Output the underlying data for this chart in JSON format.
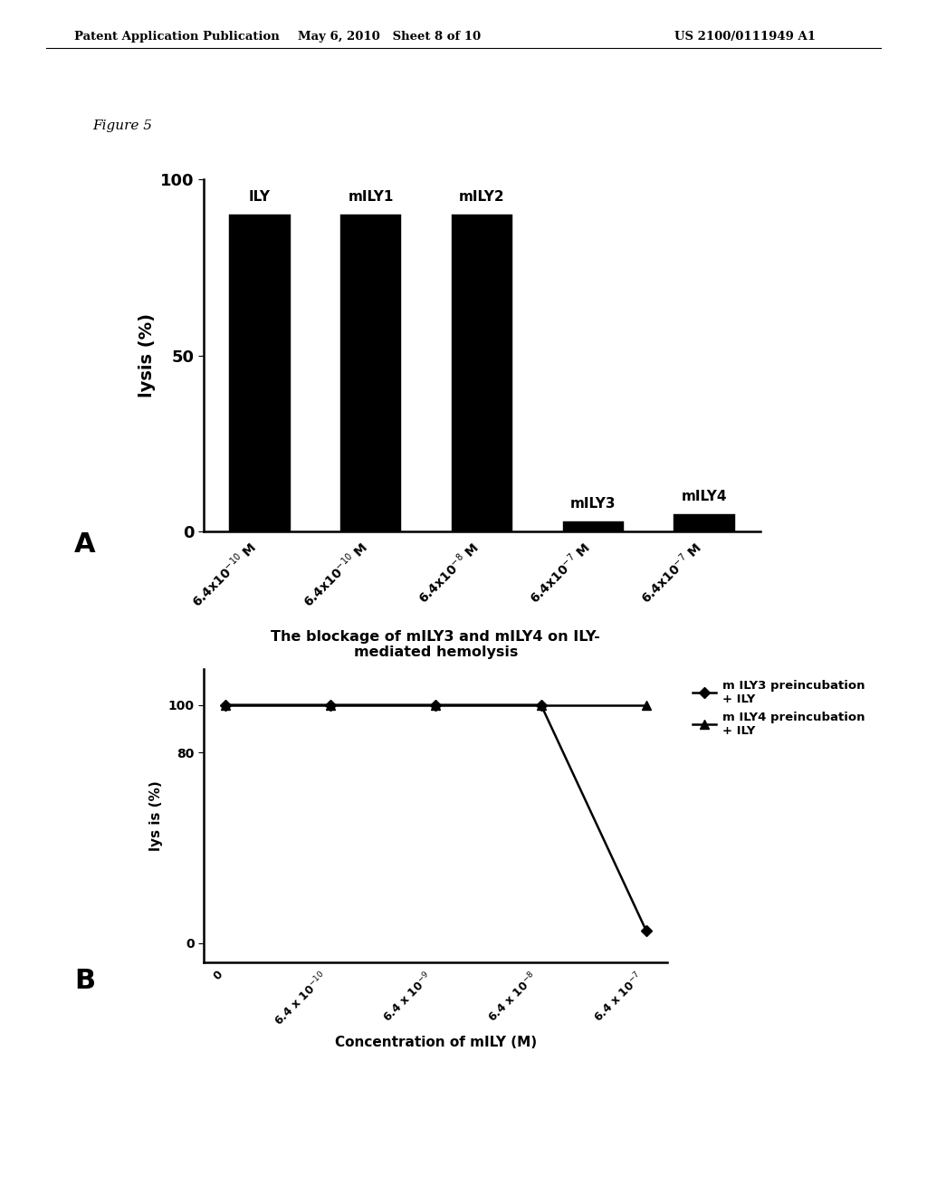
{
  "header_left": "Patent Application Publication",
  "header_mid": "May 6, 2010   Sheet 8 of 10",
  "header_right": "US 2100/0111949 A1",
  "header_full": "Patent Application Publication          May 6, 2010   Sheet 8 of 10          US 2100/0111949 A1",
  "figure_label": "Figure 5",
  "panel_A_label": "A",
  "panel_B_label": "B",
  "bar_top_labels": [
    "ILY",
    "mILY1",
    "mILY2",
    "mILY3",
    "mILY4"
  ],
  "bar_values": [
    90,
    90,
    90,
    3,
    5
  ],
  "bar_color": "#000000",
  "bar_ylabel": "lysis (%)",
  "bar_ylim": [
    0,
    100
  ],
  "bar_yticks": [
    0,
    50,
    100
  ],
  "bar_xtick_labels": [
    "6.4x10$^{-10}$ M",
    "6.4x10$^{-10}$ M",
    "6.4x10$^{-8}$ M",
    "6.4x10$^{-7}$ M",
    "6.4x10$^{-7}$ M"
  ],
  "line_title": "The blockage of mILY3 and mILY4 on ILY-\nmediated hemolysis",
  "line_xlabel": "Concentration of mILY (M)",
  "line_ylabel": "lys is (%)",
  "line_yticks": [
    0,
    80,
    100
  ],
  "line_xtick_labels": [
    "0",
    "6.4 x 10$^{-10}$",
    "6.4 x 10$^{-9}$",
    "6.4 x 10$^{-8}$",
    "6.4 x 10$^{-7}$"
  ],
  "mILY3_values": [
    100,
    100,
    100,
    100,
    5
  ],
  "mILY4_values": [
    100,
    100,
    100,
    100,
    100
  ],
  "legend_mILY3": "m ILY3 preincubation\n+ ILY",
  "legend_mILY4": "m ILY4 preincubation\n+ ILY"
}
